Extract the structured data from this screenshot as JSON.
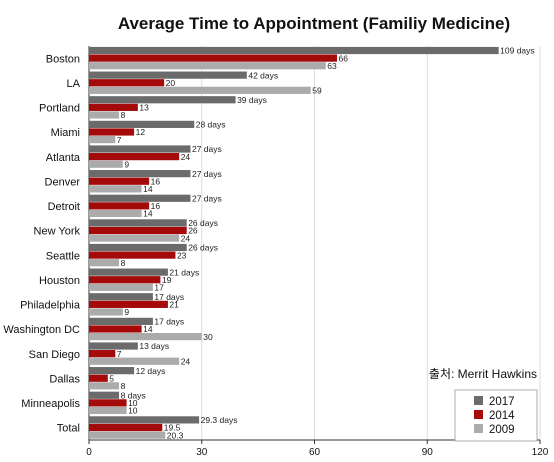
{
  "chart_data": {
    "type": "bar",
    "orientation": "horizontal",
    "title": "Average Time to Appointment (Familiy Medicine)",
    "source_note": "출처: Merrit Hawkins",
    "categories": [
      "Boston",
      "LA",
      "Portland",
      "Miami",
      "Atlanta",
      "Denver",
      "Detroit",
      "New York",
      "Seattle",
      "Houston",
      "Philadelphia",
      "Washington DC",
      "San Diego",
      "Dallas",
      "Minneapolis",
      "Total"
    ],
    "series": [
      {
        "name": "2017",
        "color": "#6b6b6b",
        "values": [
          109,
          42,
          39,
          28,
          27,
          27,
          27,
          26,
          26,
          21,
          17,
          17,
          13,
          12,
          8,
          29.3
        ],
        "labels": [
          "109 days",
          "42 days",
          "39 days",
          "28 days",
          "27 days",
          "27 days",
          "27 days",
          "26 days",
          "26 days",
          "21 days",
          "17 days",
          "17 days",
          "13 days",
          "12 days",
          "8 days",
          "29.3 days"
        ]
      },
      {
        "name": "2014",
        "color": "#a50a0a",
        "values": [
          66,
          20,
          13,
          12,
          24,
          16,
          16,
          26,
          23,
          19,
          21,
          14,
          7,
          5,
          10,
          19.5
        ],
        "labels": [
          "66",
          "20",
          "13",
          "12",
          "24",
          "16",
          "16",
          "26",
          "23",
          "19",
          "21",
          "14",
          "7",
          "5",
          "10",
          "19.5"
        ]
      },
      {
        "name": "2009",
        "color": "#ababab",
        "values": [
          63,
          59,
          8,
          7,
          9,
          14,
          14,
          24,
          8,
          17,
          9,
          30,
          24,
          8,
          10,
          20.3
        ],
        "labels": [
          "63",
          "59",
          "8",
          "7",
          "9",
          "14",
          "14",
          "24",
          "8",
          "17",
          "9",
          "30",
          "24",
          "8",
          "10",
          "20.3"
        ]
      }
    ],
    "xlim": [
      0,
      120
    ],
    "xticks": [
      "0",
      "30",
      "60",
      "90",
      "120"
    ],
    "xlabel": "",
    "ylabel": "",
    "grid": "vertical",
    "legend_position": "bottom-right"
  }
}
